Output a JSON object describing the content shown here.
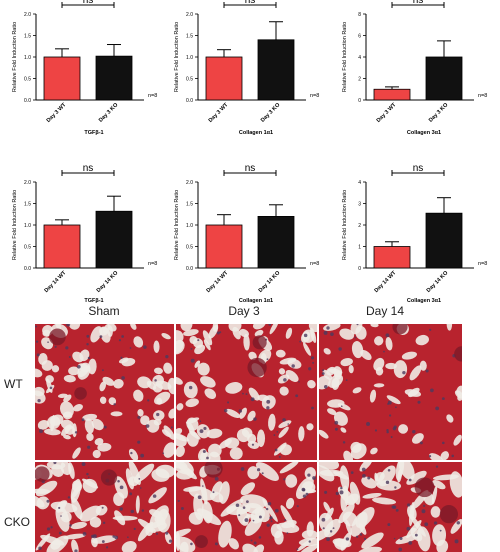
{
  "chart_data": [
    {
      "type": "bar",
      "categories": [
        "Day 3 WT",
        "Day 3 KO"
      ],
      "values": [
        1.0,
        1.02
      ],
      "errors": [
        0.19,
        0.27
      ],
      "ylim": [
        0,
        2.0
      ],
      "yticks": [
        "0.0",
        "0.5",
        "1.0",
        "1.5",
        "2.0"
      ],
      "ylabel": "Relative Fold Induction Ratio",
      "xlabel": "TGFβ-1",
      "n_label": "n=8",
      "sig_label": "ns",
      "colors": [
        "#ee4444",
        "#111111"
      ]
    },
    {
      "type": "bar",
      "categories": [
        "Day 3 WT",
        "Day 3 KO"
      ],
      "values": [
        1.0,
        1.4
      ],
      "errors": [
        0.17,
        0.42
      ],
      "ylim": [
        0,
        2.0
      ],
      "yticks": [
        "0.0",
        "0.5",
        "1.0",
        "1.5",
        "2.0"
      ],
      "ylabel": "Relative Fold Induction Ratio",
      "xlabel": "Collagen 1α1",
      "n_label": "n=8",
      "sig_label": "ns",
      "colors": [
        "#ee4444",
        "#111111"
      ]
    },
    {
      "type": "bar",
      "categories": [
        "Day 3 WT",
        "Day 3 KO"
      ],
      "values": [
        1.0,
        4.0
      ],
      "errors": [
        0.22,
        1.5
      ],
      "ylim": [
        0,
        8
      ],
      "yticks": [
        "0",
        "2",
        "4",
        "6",
        "8"
      ],
      "ylabel": "Relative Fold Induction Ratio",
      "xlabel": "Collagen 3α1",
      "n_label": "n=8",
      "sig_label": "ns",
      "colors": [
        "#ee4444",
        "#111111"
      ]
    },
    {
      "type": "bar",
      "categories": [
        "Day 14 WT",
        "Day 14 KO"
      ],
      "values": [
        1.0,
        1.32
      ],
      "errors": [
        0.12,
        0.35
      ],
      "ylim": [
        0,
        2.0
      ],
      "yticks": [
        "0.0",
        "0.5",
        "1.0",
        "1.5",
        "2.0"
      ],
      "ylabel": "Relative Fold Induction Ratio",
      "xlabel": "TGFβ-1",
      "n_label": "n=8",
      "sig_label": "ns",
      "colors": [
        "#ee4444",
        "#111111"
      ]
    },
    {
      "type": "bar",
      "categories": [
        "Day 14 WT",
        "Day 14 KO"
      ],
      "values": [
        1.0,
        1.2
      ],
      "errors": [
        0.24,
        0.27
      ],
      "ylim": [
        0,
        2.0
      ],
      "yticks": [
        "0.0",
        "0.5",
        "1.0",
        "1.5",
        "2.0"
      ],
      "ylabel": "Relative Fold Induction Ratio",
      "xlabel": "Collagen 1α1",
      "n_label": "n=8",
      "sig_label": "ns",
      "colors": [
        "#ee4444",
        "#111111"
      ]
    },
    {
      "type": "bar",
      "categories": [
        "Day 14 WT",
        "Day 14 KO"
      ],
      "values": [
        1.0,
        2.55
      ],
      "errors": [
        0.22,
        0.72
      ],
      "ylim": [
        0,
        4
      ],
      "yticks": [
        "0",
        "1",
        "2",
        "3",
        "4"
      ],
      "ylabel": "Relative Fold Induction Ratio",
      "xlabel": "Collagen 3α1",
      "n_label": "n=8",
      "sig_label": "ns",
      "colors": [
        "#ee4444",
        "#111111"
      ]
    }
  ],
  "micrographs": {
    "columns": [
      "Sham",
      "Day 3",
      "Day 14"
    ],
    "rows": [
      "WT",
      "CKO"
    ],
    "colors": {
      "tissue": "#b8232e",
      "tissue_dark": "#7a1a28",
      "lumen": "#f0ece6",
      "nuclei": "#4b3a5e"
    }
  }
}
